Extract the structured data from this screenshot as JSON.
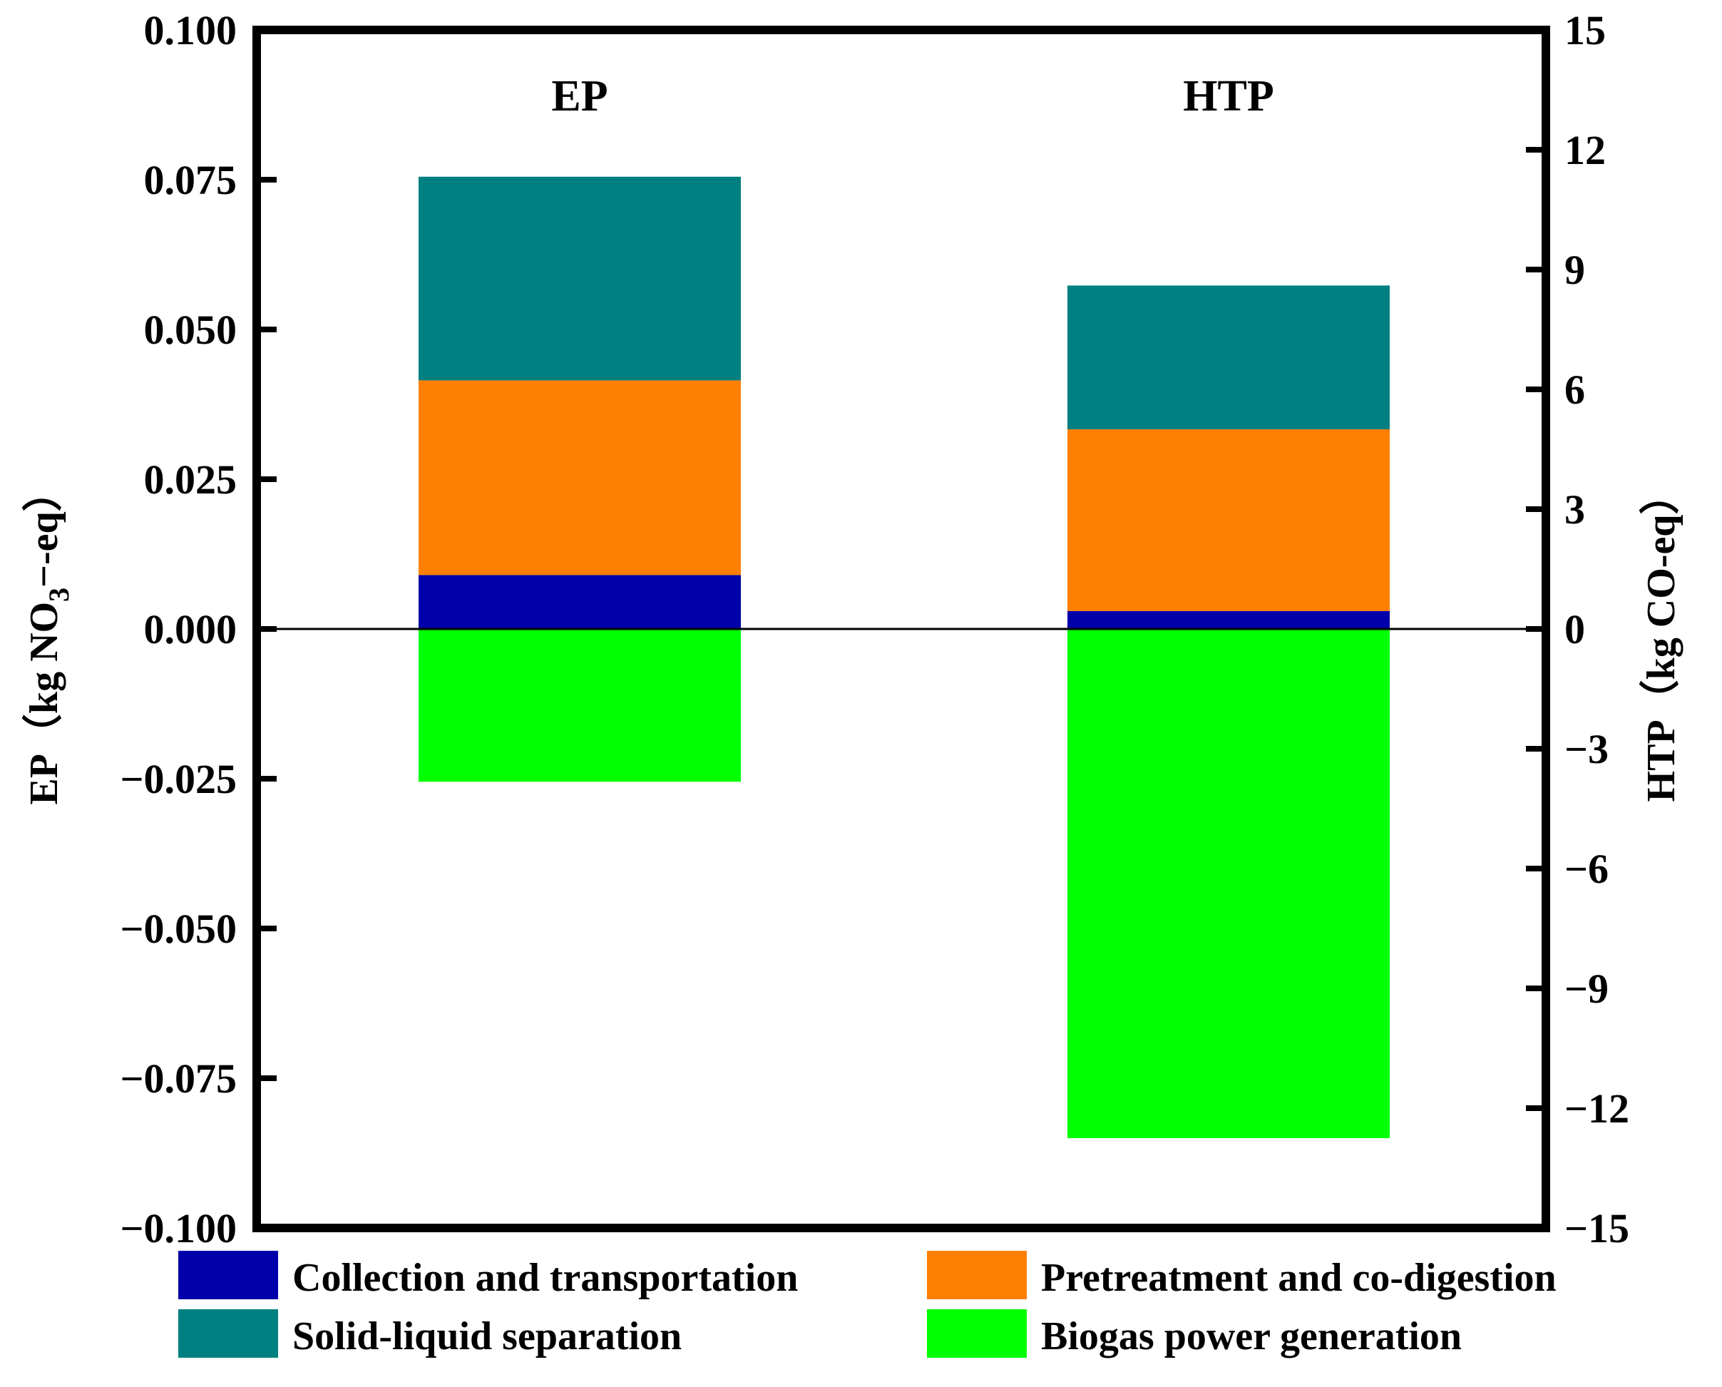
{
  "chart_data": {
    "type": "bar",
    "stacked": true,
    "categories": [
      "EP",
      "HTP"
    ],
    "axes": {
      "left": {
        "label_prefix": "EP（kg NO",
        "label_sub": "3",
        "label_suffix": "−-eq）",
        "ylim": [
          -0.1,
          0.1
        ],
        "ticks": [
          "−0.100",
          "−0.075",
          "−0.050",
          "−0.025",
          "0.000",
          "0.025",
          "0.050",
          "0.075",
          "0.100"
        ],
        "tick_values": [
          -0.1,
          -0.075,
          -0.05,
          -0.025,
          0,
          0.025,
          0.05,
          0.075,
          0.1
        ]
      },
      "right": {
        "label": "HTP（kg CO-eq）",
        "ylim": [
          -15,
          15
        ],
        "ticks": [
          "−15",
          "−12",
          "−9",
          "−6",
          "−3",
          "0",
          "3",
          "6",
          "9",
          "12",
          "15"
        ],
        "tick_values": [
          -15,
          -12,
          -9,
          -6,
          -3,
          0,
          3,
          6,
          9,
          12,
          15
        ]
      }
    },
    "series": [
      {
        "name": "Collection and transportation",
        "color": "#0000AA",
        "values": [
          0.009,
          0.45
        ]
      },
      {
        "name": "Pretreatment and co-digestion",
        "color": "#FF8000",
        "values": [
          0.0325,
          4.55
        ]
      },
      {
        "name": "Solid-liquid separation",
        "color": "#008080",
        "values": [
          0.034,
          3.6
        ]
      },
      {
        "name": "Biogas power generation",
        "color": "#00FF00",
        "values": [
          -0.0255,
          -12.75
        ]
      }
    ],
    "bar_axis": [
      "left",
      "right"
    ],
    "legend": {
      "position": "bottom",
      "columns": 2
    }
  }
}
